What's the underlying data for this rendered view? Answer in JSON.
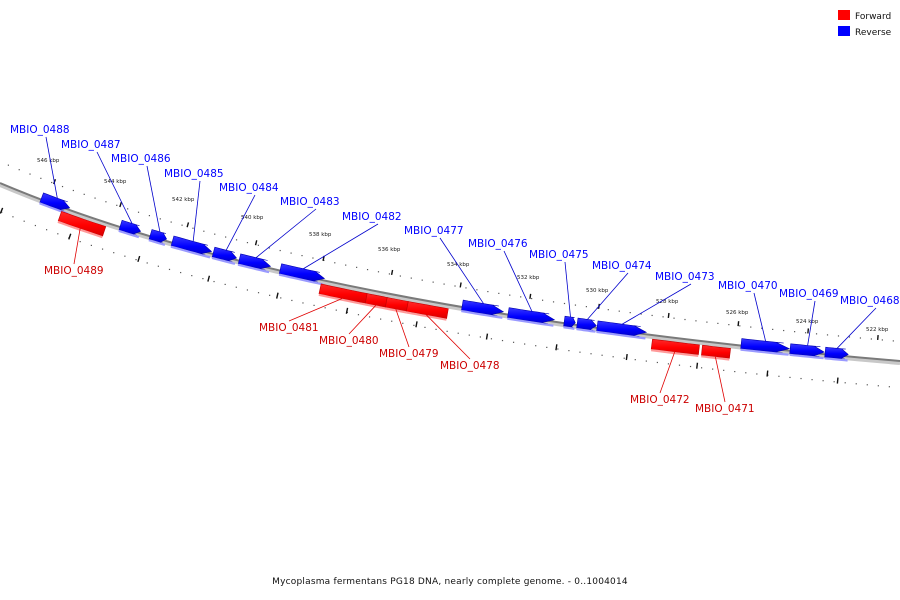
{
  "legend": {
    "items": [
      {
        "label": "Forward",
        "color": "#ff0000"
      },
      {
        "label": "Reverse",
        "color": "#0000ff"
      }
    ]
  },
  "caption": "Mycoplasma fermentans PG18 DNA, nearly complete genome. - 0..1004014",
  "colors": {
    "forward": "#ff0000",
    "reverse": "#0000ff",
    "backbone": "#808080",
    "forward_line": "#e00000",
    "reverse_line": "#0000cc"
  },
  "tick_labels": [
    "546 kbp",
    "544 kbp",
    "542 kbp",
    "540 kbp",
    "538 kbp",
    "536 kbp",
    "534 kbp",
    "532 kbp",
    "530 kbp",
    "528 kbp",
    "526 kbp",
    "524 kbp",
    "522 kbp"
  ],
  "genes": [
    {
      "label": "MBIO_0488",
      "strand": "reverse"
    },
    {
      "label": "MBIO_0487",
      "strand": "reverse"
    },
    {
      "label": "MBIO_0486",
      "strand": "reverse"
    },
    {
      "label": "MBIO_0485",
      "strand": "reverse"
    },
    {
      "label": "MBIO_0484",
      "strand": "reverse"
    },
    {
      "label": "MBIO_0483",
      "strand": "reverse"
    },
    {
      "label": "MBIO_0482",
      "strand": "reverse"
    },
    {
      "label": "MBIO_0477",
      "strand": "reverse"
    },
    {
      "label": "MBIO_0476",
      "strand": "reverse"
    },
    {
      "label": "MBIO_0475",
      "strand": "reverse"
    },
    {
      "label": "MBIO_0474",
      "strand": "reverse"
    },
    {
      "label": "MBIO_0473",
      "strand": "reverse"
    },
    {
      "label": "MBIO_0470",
      "strand": "reverse"
    },
    {
      "label": "MBIO_0469",
      "strand": "reverse"
    },
    {
      "label": "MBIO_0468",
      "strand": "reverse"
    },
    {
      "label": "MBIO_0489",
      "strand": "forward"
    },
    {
      "label": "MBIO_0481",
      "strand": "forward"
    },
    {
      "label": "MBIO_0480",
      "strand": "forward"
    },
    {
      "label": "MBIO_0479",
      "strand": "forward"
    },
    {
      "label": "MBIO_0478",
      "strand": "forward"
    },
    {
      "label": "MBIO_0472",
      "strand": "forward"
    },
    {
      "label": "MBIO_0471",
      "strand": "forward"
    }
  ]
}
